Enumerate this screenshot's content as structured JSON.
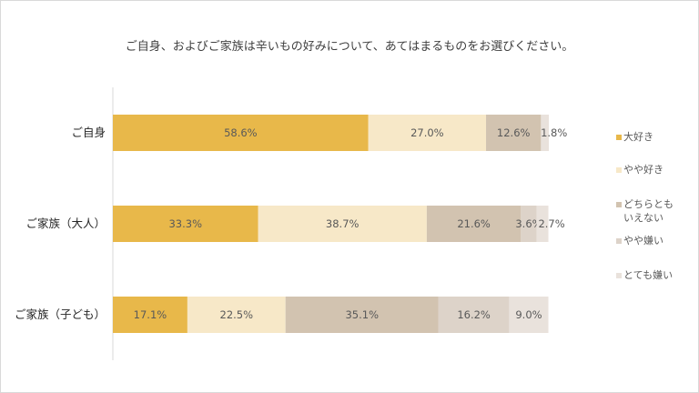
{
  "chart_data": {
    "type": "bar",
    "orientation": "horizontal",
    "stacked": "100%",
    "title": "ご自身、およびご家族は辛いもの好みについて、あてはまるものをお選びください。",
    "categories": [
      "ご自身",
      "ご家族（大人）",
      "ご家族（子ども）"
    ],
    "series": [
      {
        "name": "大好き",
        "color": "#E8B84A",
        "values": [
          58.6,
          33.3,
          17.1
        ]
      },
      {
        "name": "やや好き",
        "color": "#F7E8C8",
        "values": [
          27.0,
          38.7,
          22.5
        ]
      },
      {
        "name": "どちらともいえない",
        "color": "#D2C3B0",
        "values": [
          12.6,
          21.6,
          35.1
        ]
      },
      {
        "name": "やや嫌い",
        "color": "#DDD3C9",
        "values": [
          0.0,
          3.6,
          16.2
        ]
      },
      {
        "name": "とても嫌い",
        "color": "#E9E2DC",
        "values": [
          1.8,
          2.7,
          9.0
        ]
      }
    ],
    "legend_labels": [
      [
        "大好き"
      ],
      [
        "やや好き"
      ],
      [
        "どちらとも",
        "いえない"
      ],
      [
        "やや嫌い"
      ],
      [
        "とても嫌い"
      ]
    ],
    "xlim": [
      0,
      100
    ],
    "legend": "right",
    "grid": false
  }
}
